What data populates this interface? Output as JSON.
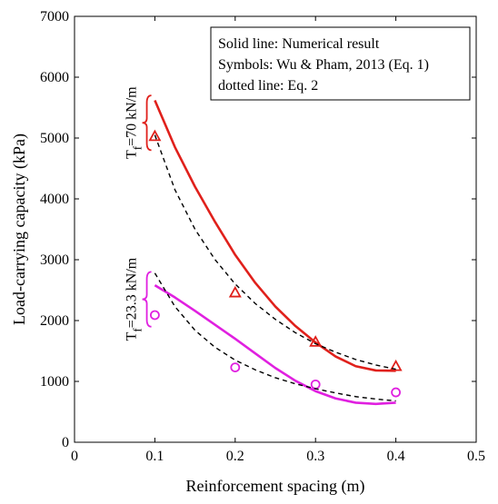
{
  "chart_data": {
    "type": "line",
    "title": "",
    "xlabel": "Reinforcement spacing (m)",
    "ylabel": "Load-carrying capacity (kPa)",
    "xlim": [
      0,
      0.5
    ],
    "ylim": [
      0,
      7000
    ],
    "xticks": [
      0,
      0.1,
      0.2,
      0.3,
      0.4,
      0.5
    ],
    "yticks": [
      0,
      1000,
      2000,
      3000,
      4000,
      5000,
      6000,
      7000
    ],
    "xtick_labels": [
      "0",
      "0.1",
      "0.2",
      "0.3",
      "0.4",
      "0.5"
    ],
    "ytick_labels": [
      "0",
      "1000",
      "2000",
      "3000",
      "4000",
      "5000",
      "6000",
      "7000"
    ],
    "grid": false,
    "legend": {
      "placement": "top-right",
      "lines": [
        "Solid line: Numerical result",
        "Symbols: Wu & Pham, 2013 (Eq. 1)",
        "dotted line: Eq. 2"
      ]
    },
    "annotations": [
      {
        "base": "T",
        "sub": "f",
        "rest": "=70 kN/m",
        "color": "#e0201b",
        "y_range": [
          4800,
          5700
        ],
        "x": 0.09
      },
      {
        "base": "T",
        "sub": "f",
        "rest": "=23.3 kN/m",
        "color": "#e020e0",
        "y_range": [
          1900,
          2800
        ],
        "x": 0.09
      }
    ],
    "series": [
      {
        "group": "70",
        "kind": "numerical",
        "style": "solid",
        "color": "#e0201b",
        "x": [
          0.1,
          0.125,
          0.15,
          0.175,
          0.2,
          0.225,
          0.25,
          0.275,
          0.3,
          0.325,
          0.35,
          0.375,
          0.4
        ],
        "y": [
          5620,
          4850,
          4200,
          3620,
          3080,
          2620,
          2230,
          1910,
          1640,
          1410,
          1250,
          1180,
          1175
        ]
      },
      {
        "group": "70",
        "kind": "eq1",
        "style": "triangle",
        "color": "#e0201b",
        "x": [
          0.1,
          0.2,
          0.3,
          0.4
        ],
        "y": [
          5030,
          2460,
          1650,
          1250
        ]
      },
      {
        "group": "70",
        "kind": "eq2",
        "style": "dotted",
        "color": "#000000",
        "x": [
          0.1,
          0.125,
          0.15,
          0.175,
          0.2,
          0.225,
          0.25,
          0.275,
          0.3,
          0.325,
          0.35,
          0.375,
          0.4
        ],
        "y": [
          5050,
          4150,
          3500,
          3000,
          2600,
          2280,
          2020,
          1800,
          1620,
          1480,
          1360,
          1270,
          1200
        ]
      },
      {
        "group": "23.3",
        "kind": "numerical",
        "style": "solid",
        "color": "#e020e0",
        "x": [
          0.1,
          0.125,
          0.15,
          0.175,
          0.2,
          0.225,
          0.25,
          0.275,
          0.3,
          0.325,
          0.35,
          0.375,
          0.4
        ],
        "y": [
          2580,
          2380,
          2160,
          1930,
          1700,
          1460,
          1220,
          1010,
          840,
          720,
          650,
          630,
          650
        ]
      },
      {
        "group": "23.3",
        "kind": "eq1",
        "style": "circle",
        "color": "#e020e0",
        "x": [
          0.1,
          0.2,
          0.3,
          0.4
        ],
        "y": [
          2090,
          1230,
          950,
          820
        ]
      },
      {
        "group": "23.3",
        "kind": "eq2",
        "style": "dotted",
        "color": "#000000",
        "x": [
          0.1,
          0.125,
          0.15,
          0.175,
          0.2,
          0.225,
          0.25,
          0.275,
          0.3,
          0.325,
          0.35,
          0.375,
          0.4
        ],
        "y": [
          2780,
          2230,
          1840,
          1560,
          1350,
          1190,
          1060,
          960,
          880,
          810,
          750,
          710,
          680
        ]
      }
    ]
  }
}
